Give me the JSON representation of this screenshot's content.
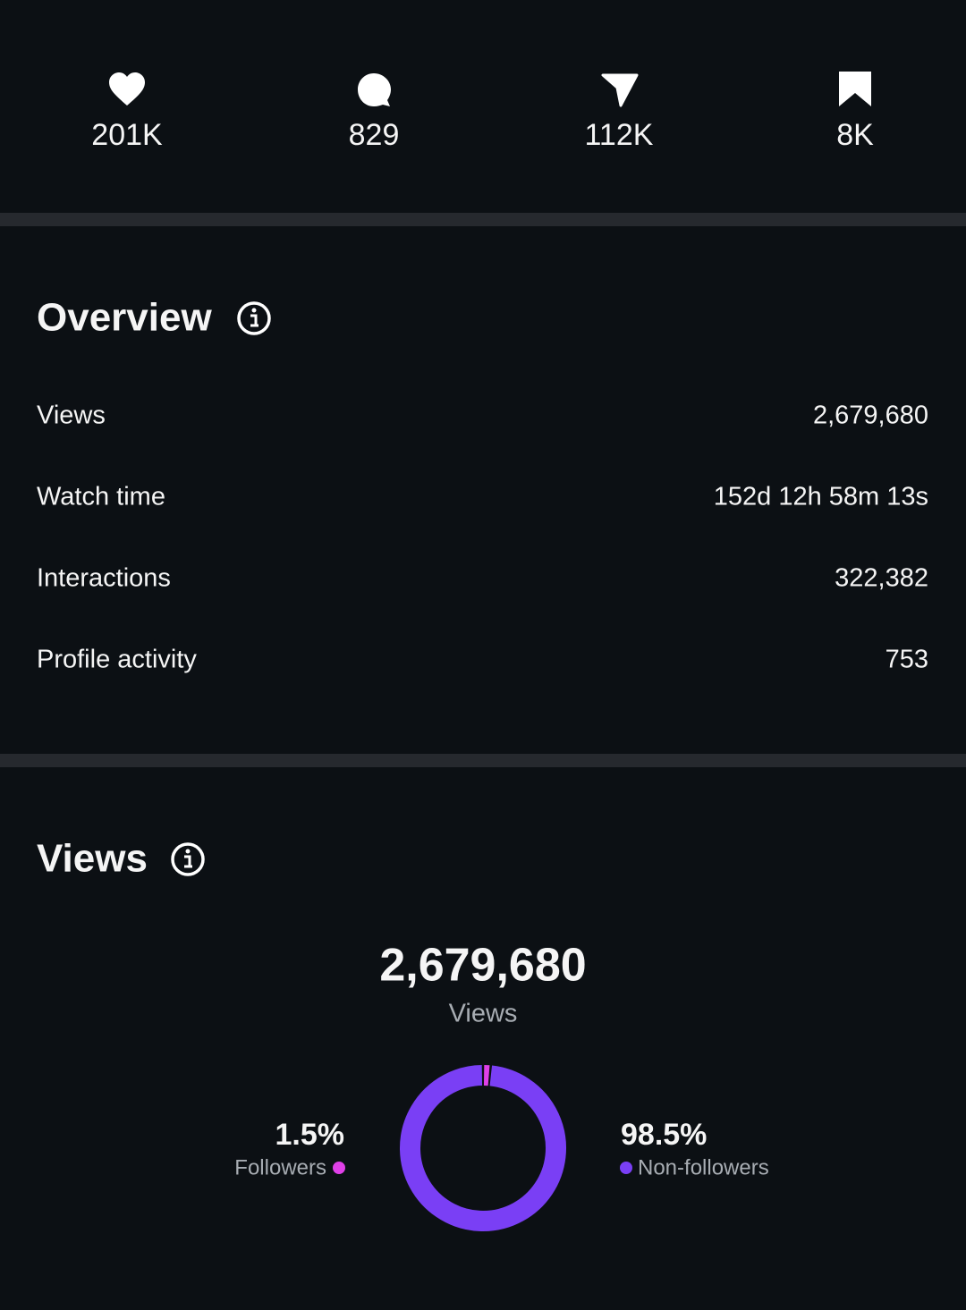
{
  "stats": [
    {
      "value": "201K"
    },
    {
      "value": "829"
    },
    {
      "value": "112K"
    },
    {
      "value": "8K"
    }
  ],
  "overview": {
    "title": "Overview",
    "rows": [
      [
        "Views",
        "2,679,680"
      ],
      [
        "Watch time",
        "152d 12h 58m 13s"
      ],
      [
        "Interactions",
        "322,382"
      ],
      [
        "Profile activity",
        "753"
      ]
    ]
  },
  "views": {
    "title": "Views",
    "total": "2,679,680",
    "total_label": "Views",
    "chart": {
      "type": "pie",
      "categories": [
        "Followers",
        "Non-followers"
      ],
      "values": [
        1.5,
        98.5
      ],
      "value_labels": [
        "1.5%",
        "98.5%"
      ],
      "colors": [
        "#e040e8",
        "#7a3ff5"
      ]
    }
  }
}
